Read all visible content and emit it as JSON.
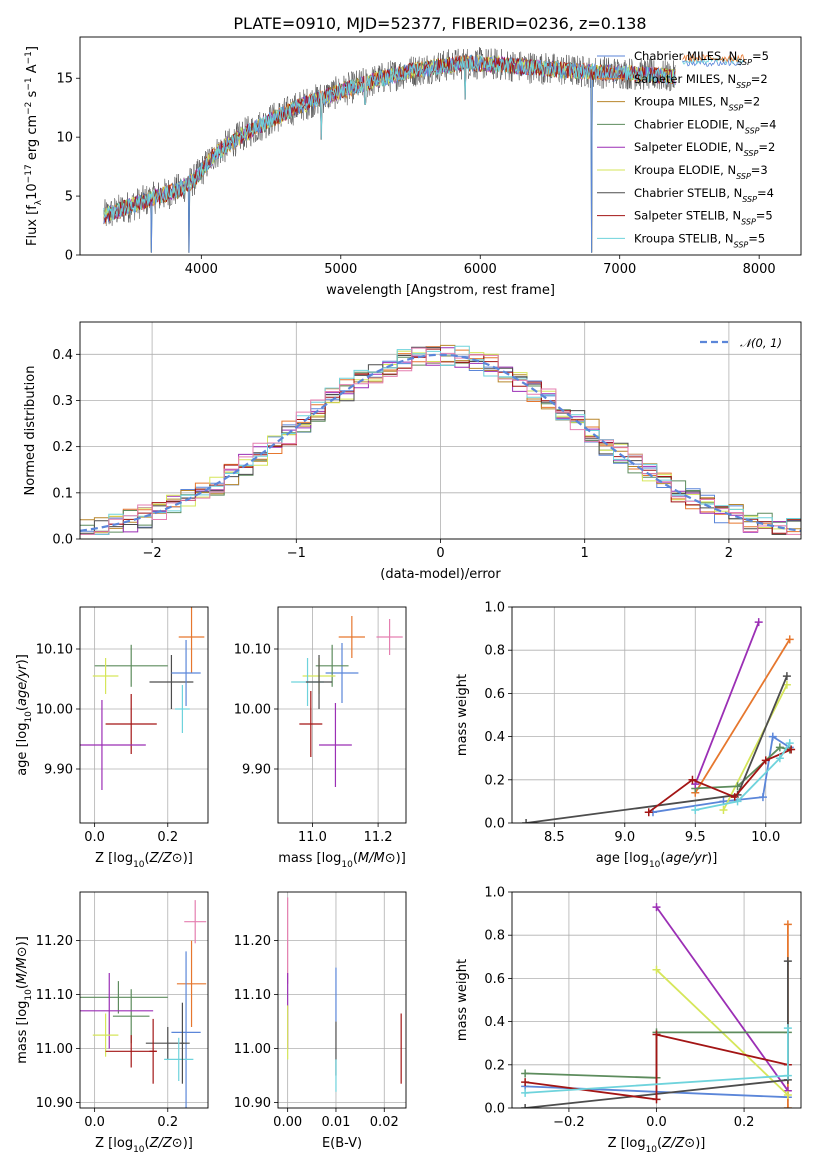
{
  "title": "PLATE=0910, MJD=52377, FIBERID=0236, z=0.138",
  "colors": {
    "chabrier_miles": "#5b86d9",
    "salpeter_miles": "#e6772e",
    "kroupa_miles": "#b8862b",
    "chabrier_elodie": "#5d8c5d",
    "salpeter_elodie": "#9b2fb5",
    "kroupa_elodie": "#d6e65a",
    "chabrier_stelib": "#4d4d4d",
    "salpeter_stelib": "#a31515",
    "kroupa_stelib": "#6ed3dc",
    "pink": "#e57fb0",
    "grid": "#b0b0b0"
  },
  "chart_data": [
    {
      "id": "spectrum",
      "type": "line",
      "xlabel": "wavelength [Angstrom, rest frame]",
      "ylabel_parts": [
        "Flux [f",
        "λ",
        "10",
        "−17",
        " erg cm",
        "−2",
        " s",
        "−1",
        " A",
        "−1",
        "]"
      ],
      "xlim": [
        3130,
        8300
      ],
      "ylim": [
        0,
        18.5
      ],
      "xticks": [
        4000,
        5000,
        6000,
        7000,
        8000
      ],
      "yticks": [
        0,
        5,
        10,
        15
      ],
      "grid": false,
      "legend_position": "top-right",
      "legend": [
        {
          "label": "Chabrier MILES, N",
          "sub": "SSP",
          "tail": "=5",
          "color_key": "chabrier_miles"
        },
        {
          "label": "Salpeter MILES, N",
          "sub": "SSP",
          "tail": "=2",
          "color_key": "salpeter_miles"
        },
        {
          "label": "Kroupa MILES, N",
          "sub": "SSP",
          "tail": "=2",
          "color_key": "kroupa_miles"
        },
        {
          "label": "Chabrier ELODIE, N",
          "sub": "SSP",
          "tail": "=4",
          "color_key": "chabrier_elodie"
        },
        {
          "label": "Salpeter ELODIE, N",
          "sub": "SSP",
          "tail": "=2",
          "color_key": "salpeter_elodie"
        },
        {
          "label": "Kroupa ELODIE, N",
          "sub": "SSP",
          "tail": "=3",
          "color_key": "kroupa_elodie"
        },
        {
          "label": "Chabrier STELIB, N",
          "sub": "SSP",
          "tail": "=4",
          "color_key": "chabrier_stelib"
        },
        {
          "label": "Salpeter STELIB, N",
          "sub": "SSP",
          "tail": "=5",
          "color_key": "salpeter_stelib"
        },
        {
          "label": "Kroupa STELIB, N",
          "sub": "SSP",
          "tail": "=5",
          "color_key": "kroupa_stelib"
        }
      ],
      "continuum": [
        [
          3300,
          3.3
        ],
        [
          3500,
          4.2
        ],
        [
          3700,
          5.0
        ],
        [
          3850,
          5.6
        ],
        [
          3950,
          6.4
        ],
        [
          4100,
          8.6
        ],
        [
          4300,
          10.2
        ],
        [
          4500,
          11.5
        ],
        [
          4700,
          12.6
        ],
        [
          4900,
          13.5
        ],
        [
          5100,
          14.3
        ],
        [
          5300,
          15.0
        ],
        [
          5500,
          15.6
        ],
        [
          5700,
          16.0
        ],
        [
          5900,
          16.3
        ],
        [
          6100,
          16.2
        ],
        [
          6300,
          16.0
        ],
        [
          6500,
          15.8
        ],
        [
          6700,
          15.6
        ],
        [
          6900,
          15.5
        ],
        [
          7100,
          15.4
        ],
        [
          7300,
          15.2
        ],
        [
          7400,
          15.1
        ]
      ],
      "drops": [
        [
          3640,
          0.2
        ],
        [
          3910,
          0.2
        ],
        [
          4860,
          9.8
        ],
        [
          5175,
          12.8
        ],
        [
          5890,
          13.2
        ],
        [
          6800,
          0.2
        ],
        [
          7420,
          0.2
        ]
      ]
    },
    {
      "id": "residuals",
      "type": "histogram",
      "xlabel": "(data-model)/error",
      "ylabel": "Normed distribution",
      "xlim": [
        -2.5,
        2.5
      ],
      "ylim": [
        0,
        0.47
      ],
      "xticks": [
        -2,
        -1,
        0,
        1,
        2
      ],
      "yticks": [
        0.0,
        0.1,
        0.2,
        0.3,
        0.4
      ],
      "grid": true,
      "bin_width": 0.1,
      "legend_position": "top-right",
      "legend": [
        {
          "label": "𝒩(0, 1)",
          "color_key": "chabrier_miles",
          "style": "dashed"
        }
      ]
    },
    {
      "id": "age-vs-Z",
      "type": "errorbar",
      "xlabel": "Z [log10(Z/Z⊙)]",
      "ylabel": "age  [log10(age/yr)]",
      "xlim": [
        -0.04,
        0.31
      ],
      "ylim": [
        9.81,
        10.17
      ],
      "xticks": [
        0.0,
        0.2
      ],
      "yticks": [
        9.9,
        10.0,
        10.1
      ],
      "grid": true,
      "points": [
        {
          "c": "chabrier_elodie",
          "x": 0.1,
          "xe": 0.1,
          "y": 10.072,
          "ye": 0.035
        },
        {
          "c": "kroupa_elodie",
          "x": 0.03,
          "xe": 0.035,
          "y": 10.055,
          "ye": 0.03
        },
        {
          "c": "salpeter_miles",
          "x": 0.265,
          "xe": 0.035,
          "y": 10.12,
          "ye": 0.06
        },
        {
          "c": "chabrier_stelib",
          "x": 0.21,
          "xe": 0.06,
          "y": 10.045,
          "ye": 0.045
        },
        {
          "c": "chabrier_miles",
          "x": 0.25,
          "xe": 0.04,
          "y": 10.06,
          "ye": 0.055
        },
        {
          "c": "kroupa_stelib",
          "x": 0.24,
          "xe": 0.02,
          "y": 10.0,
          "ye": 0.04
        },
        {
          "c": "salpeter_stelib",
          "x": 0.1,
          "xe": 0.07,
          "y": 9.975,
          "ye": 0.05
        },
        {
          "c": "salpeter_elodie",
          "x": 0.02,
          "xe": 0.12,
          "y": 9.94,
          "ye": 0.075
        }
      ]
    },
    {
      "id": "age-vs-mass",
      "type": "errorbar",
      "xlabel": "mass [log10(M/M⊙)]",
      "ylabel": "",
      "xlim": [
        10.895,
        11.285
      ],
      "ylim": [
        9.81,
        10.17
      ],
      "xticks": [
        11.0,
        11.2
      ],
      "yticks": [
        9.9,
        10.0,
        10.1
      ],
      "grid": true,
      "points": [
        {
          "c": "salpeter_miles",
          "x": 11.12,
          "xe": 0.04,
          "y": 10.12,
          "ye": 0.035
        },
        {
          "c": "pink",
          "x": 11.235,
          "xe": 0.04,
          "y": 10.12,
          "ye": 0.03
        },
        {
          "c": "chabrier_miles",
          "x": 11.09,
          "xe": 0.05,
          "y": 10.06,
          "ye": 0.05
        },
        {
          "c": "chabrier_elodie",
          "x": 11.06,
          "xe": 0.05,
          "y": 10.072,
          "ye": 0.035
        },
        {
          "c": "kroupa_elodie",
          "x": 11.02,
          "xe": 0.05,
          "y": 10.055,
          "ye": 0.03
        },
        {
          "c": "kroupa_stelib",
          "x": 10.985,
          "xe": 0.05,
          "y": 10.045,
          "ye": 0.04
        },
        {
          "c": "chabrier_stelib",
          "x": 11.02,
          "xe": 0.04,
          "y": 10.045,
          "ye": 0.045
        },
        {
          "c": "salpeter_stelib",
          "x": 10.995,
          "xe": 0.035,
          "y": 9.975,
          "ye": 0.055
        },
        {
          "c": "salpeter_elodie",
          "x": 11.07,
          "xe": 0.05,
          "y": 9.94,
          "ye": 0.07
        }
      ]
    },
    {
      "id": "weight-vs-age",
      "type": "line",
      "xlabel": "age  [log10(age/yr)]",
      "ylabel": "mass weight",
      "xlim": [
        8.2,
        10.25
      ],
      "ylim": [
        0,
        1
      ],
      "xticks": [
        8.5,
        9.0,
        9.5,
        10.0
      ],
      "yticks": [
        0.0,
        0.2,
        0.4,
        0.6,
        0.8,
        1.0
      ],
      "grid": true,
      "series": [
        {
          "c": "chabrier_miles",
          "points": [
            [
              9.2,
              0.05
            ],
            [
              9.7,
              0.1
            ],
            [
              9.98,
              0.12
            ],
            [
              10.05,
              0.4
            ],
            [
              10.17,
              0.35
            ]
          ]
        },
        {
          "c": "salpeter_miles",
          "points": [
            [
              9.5,
              0.14
            ],
            [
              10.17,
              0.85
            ]
          ]
        },
        {
          "c": "kroupa_elodie",
          "points": [
            [
              9.7,
              0.06
            ],
            [
              10.15,
              0.64
            ]
          ]
        },
        {
          "c": "chabrier_elodie",
          "points": [
            [
              9.5,
              0.16
            ],
            [
              9.8,
              0.17
            ],
            [
              10.1,
              0.35
            ],
            [
              10.17,
              0.34
            ]
          ]
        },
        {
          "c": "salpeter_elodie",
          "points": [
            [
              9.5,
              0.18
            ],
            [
              9.95,
              0.93
            ]
          ]
        },
        {
          "c": "chabrier_stelib",
          "points": [
            [
              8.3,
              0.0
            ],
            [
              9.8,
              0.13
            ],
            [
              10.15,
              0.68
            ]
          ]
        },
        {
          "c": "salpeter_stelib",
          "points": [
            [
              9.17,
              0.05
            ],
            [
              9.48,
              0.2
            ],
            [
              9.78,
              0.12
            ],
            [
              10.0,
              0.29
            ],
            [
              10.18,
              0.34
            ]
          ]
        },
        {
          "c": "kroupa_stelib",
          "points": [
            [
              9.5,
              0.06
            ],
            [
              9.8,
              0.1
            ],
            [
              10.1,
              0.3
            ],
            [
              10.17,
              0.37
            ]
          ]
        }
      ]
    },
    {
      "id": "mass-vs-Z",
      "type": "errorbar",
      "xlabel": "Z [log10(Z/Z⊙)]",
      "ylabel": "mass [log10(M/M⊙)]",
      "xlim": [
        -0.04,
        0.31
      ],
      "ylim": [
        10.89,
        11.29
      ],
      "xticks": [
        0.0,
        0.2
      ],
      "yticks": [
        10.9,
        11.0,
        11.1,
        11.2
      ],
      "grid": true,
      "points": [
        {
          "c": "pink",
          "x": 0.275,
          "xe": 0.03,
          "y": 11.235,
          "ye": 0.04
        },
        {
          "c": "salpeter_miles",
          "x": 0.265,
          "xe": 0.04,
          "y": 11.12,
          "ye": 0.08
        },
        {
          "c": "chabrier_elodie",
          "x": 0.065,
          "xe": 0.135,
          "y": 11.095,
          "ye": 0.03
        },
        {
          "c": "chabrier_elodie",
          "x": 0.1,
          "xe": 0.05,
          "y": 11.06,
          "ye": 0.05
        },
        {
          "c": "salpeter_elodie",
          "x": 0.04,
          "xe": 0.12,
          "y": 11.07,
          "ye": 0.07
        },
        {
          "c": "chabrier_miles",
          "x": 0.25,
          "xe": 0.04,
          "y": 11.03,
          "ye": 0.15
        },
        {
          "c": "kroupa_elodie",
          "x": 0.03,
          "xe": 0.035,
          "y": 11.025,
          "ye": 0.04
        },
        {
          "c": "chabrier_stelib",
          "x": 0.2,
          "xe": 0.06,
          "y": 11.01,
          "ye": 0.03
        },
        {
          "c": "salpeter_stelib",
          "x": 0.1,
          "xe": 0.07,
          "y": 10.995,
          "ye": 0.03
        },
        {
          "c": "salpeter_stelib",
          "x": 0.16,
          "xe": 0.01,
          "y": 10.995,
          "ye": 0.06
        },
        {
          "c": "kroupa_stelib",
          "x": 0.23,
          "xe": 0.04,
          "y": 10.98,
          "ye": 0.04
        },
        {
          "c": "chabrier_stelib",
          "x": 0.24,
          "xe": 0.005,
          "y": 11.01,
          "ye": 0.075
        }
      ]
    },
    {
      "id": "mass-vs-EBV",
      "type": "errorbar",
      "xlabel": "E(B-V)",
      "ylabel": "",
      "xlim": [
        -0.002,
        0.0245
      ],
      "ylim": [
        10.89,
        11.29
      ],
      "xticks": [
        0.0,
        0.01,
        0.02
      ],
      "yticks": [
        10.9,
        11.0,
        11.1,
        11.2
      ],
      "grid": true,
      "points": [
        {
          "c": "pink",
          "x": 0.0,
          "xe": 0.0,
          "y": 11.2,
          "ye": 0.08
        },
        {
          "c": "salpeter_elodie",
          "x": 0.0,
          "xe": 0.0,
          "y": 11.07,
          "ye": 0.07
        },
        {
          "c": "kroupa_elodie",
          "x": 0.0,
          "xe": 0.0,
          "y": 11.03,
          "ye": 0.05
        },
        {
          "c": "chabrier_miles",
          "x": 0.01,
          "xe": 0.0,
          "y": 11.1,
          "ye": 0.05
        },
        {
          "c": "chabrier_stelib",
          "x": 0.01,
          "xe": 0.0,
          "y": 11.0,
          "ye": 0.05
        },
        {
          "c": "kroupa_stelib",
          "x": 0.01,
          "xe": 0.0,
          "y": 10.95,
          "ye": 0.03
        },
        {
          "c": "salpeter_stelib",
          "x": 0.0235,
          "xe": 0.0,
          "y": 11.0,
          "ye": 0.065
        }
      ]
    },
    {
      "id": "weight-vs-Z",
      "type": "line",
      "xlabel": "Z [log10(Z/Z⊙)]",
      "ylabel": "mass weight",
      "xlim": [
        -0.33,
        0.33
      ],
      "ylim": [
        0,
        1
      ],
      "xticks": [
        -0.2,
        0.0,
        0.2
      ],
      "yticks": [
        0.0,
        0.2,
        0.4,
        0.6,
        0.8,
        1.0
      ],
      "grid": true,
      "series": [
        {
          "c": "chabrier_miles",
          "points": [
            [
              -0.3,
              0.1
            ],
            [
              0.3,
              0.05
            ]
          ]
        },
        {
          "c": "salpeter_miles",
          "points": [
            [
              0.3,
              0.0
            ],
            [
              0.3,
              0.85
            ]
          ]
        },
        {
          "c": "salpeter_elodie",
          "points": [
            [
              0.0,
              0.93
            ],
            [
              0.3,
              0.08
            ]
          ]
        },
        {
          "c": "kroupa_elodie",
          "points": [
            [
              0.0,
              0.64
            ],
            [
              0.3,
              0.06
            ]
          ]
        },
        {
          "c": "chabrier_elodie",
          "points": [
            [
              -0.3,
              0.16
            ],
            [
              0.0,
              0.14
            ],
            [
              0.0,
              0.35
            ],
            [
              0.3,
              0.35
            ]
          ]
        },
        {
          "c": "chabrier_stelib",
          "points": [
            [
              -0.3,
              0.0
            ],
            [
              0.3,
              0.13
            ],
            [
              0.3,
              0.68
            ]
          ]
        },
        {
          "c": "salpeter_stelib",
          "points": [
            [
              -0.3,
              0.12
            ],
            [
              0.0,
              0.04
            ],
            [
              0.0,
              0.34
            ],
            [
              0.3,
              0.2
            ]
          ]
        },
        {
          "c": "kroupa_stelib",
          "points": [
            [
              -0.3,
              0.07
            ],
            [
              0.3,
              0.15
            ],
            [
              0.3,
              0.37
            ]
          ]
        }
      ]
    }
  ]
}
